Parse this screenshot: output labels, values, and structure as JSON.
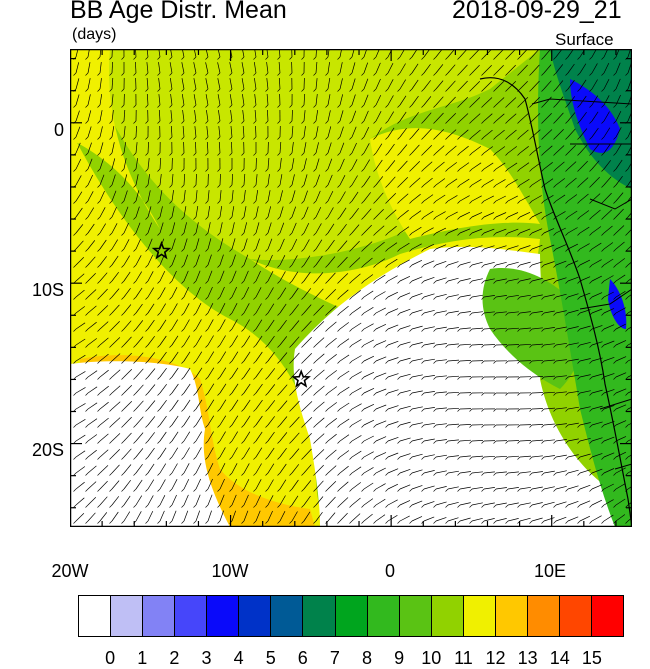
{
  "title": "BB Age Distr. Mean",
  "units": "(days)",
  "datetime": "2018-09-29_21",
  "level": "Surface",
  "lat_labels": [
    "0",
    "10S",
    "20S"
  ],
  "lon_labels": [
    "20W",
    "10W",
    "0",
    "10E"
  ],
  "colorbar": {
    "colors": [
      "#ffffff",
      "#bfbff5",
      "#8282f5",
      "#4646fa",
      "#0a0afa",
      "#0032c8",
      "#005a96",
      "#00824b",
      "#00a51e",
      "#32b91e",
      "#5ac314",
      "#91d200",
      "#f0f000",
      "#ffc800",
      "#ff8c00",
      "#ff4600",
      "#ff0000"
    ],
    "labels": [
      "0",
      "1",
      "2",
      "3",
      "4",
      "5",
      "6",
      "7",
      "8",
      "9",
      "10",
      "11",
      "12",
      "13",
      "14",
      "15"
    ]
  },
  "markers": [
    {
      "name": "star-marker-west",
      "lon": -14.3,
      "lat": -8.0
    },
    {
      "name": "star-marker-south",
      "lon": -5.6,
      "lat": -16.0
    }
  ]
}
